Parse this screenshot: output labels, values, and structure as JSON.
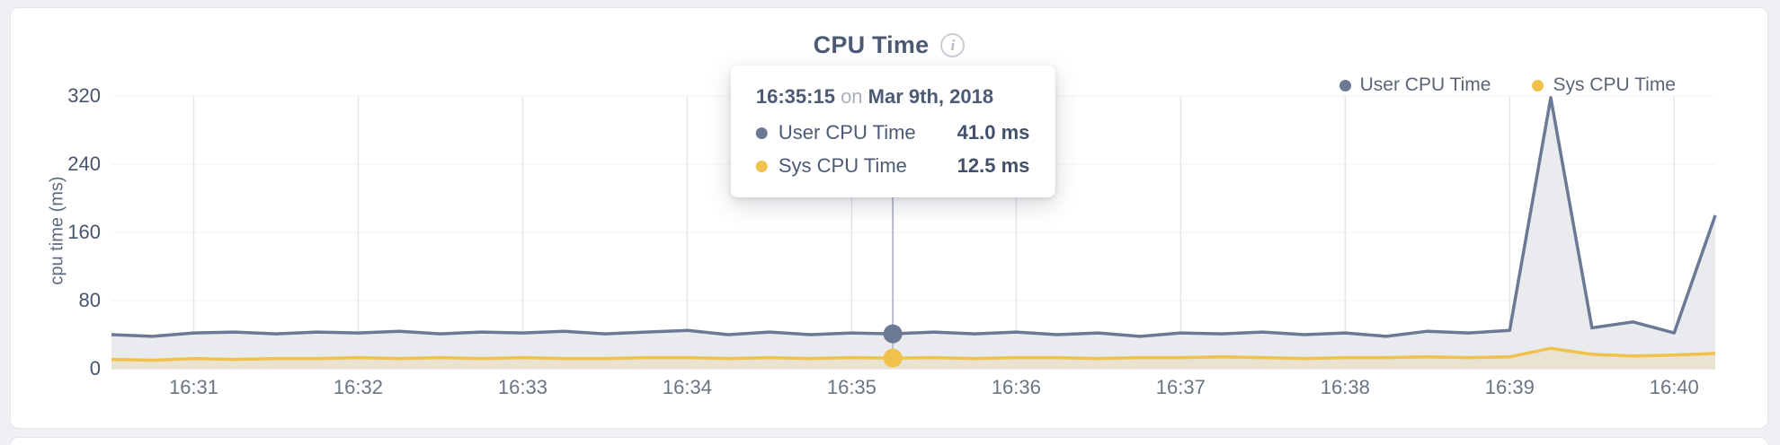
{
  "title": "CPU Time",
  "icons": {
    "info": "i"
  },
  "colors": {
    "user": "#6b7994",
    "sys": "#f0c24b",
    "user_fill": "#e9ebef",
    "sys_fill": "rgba(240,194,75,0.18)",
    "hover_line": "#b7bdc7",
    "grid": "#e4e6ea",
    "grid_minor": "#f1f2f5"
  },
  "legend": [
    {
      "label": "User CPU Time",
      "color": "#6b7994"
    },
    {
      "label": "Sys CPU Time",
      "color": "#f0c24b"
    }
  ],
  "tooltip": {
    "time": "16:35:15",
    "connector": "on",
    "date": "Mar 9th, 2018",
    "rows": [
      {
        "label": "User CPU Time",
        "value": "41.0 ms",
        "color": "#6b7994"
      },
      {
        "label": "Sys CPU Time",
        "value": "12.5 ms",
        "color": "#f0c24b"
      }
    ]
  },
  "chart_data": {
    "type": "line",
    "title": "CPU Time",
    "xlabel": "",
    "ylabel": "cpu time (ms)",
    "ylim": [
      0,
      320
    ],
    "yticks": [
      0,
      80,
      160,
      240,
      320
    ],
    "x_ticks": [
      "16:31",
      "16:32",
      "16:33",
      "16:34",
      "16:35",
      "16:36",
      "16:37",
      "16:38",
      "16:39",
      "16:40"
    ],
    "x_start": "16:30:30",
    "x_interval_sec": 15,
    "grid": "vertical",
    "legend_position": "top-right",
    "hover": {
      "time": "16:35:15",
      "user": 41.0,
      "sys": 12.5
    },
    "series": [
      {
        "name": "User CPU Time",
        "values": [
          40,
          38,
          42,
          43,
          41,
          43,
          42,
          44,
          41,
          43,
          42,
          44,
          41,
          43,
          45,
          40,
          43,
          40,
          42,
          41,
          43,
          41,
          43,
          40,
          42,
          38,
          42,
          41,
          43,
          40,
          42,
          38,
          44,
          42,
          45,
          318,
          48,
          55,
          42,
          180
        ]
      },
      {
        "name": "Sys CPU Time",
        "values": [
          11,
          10,
          12,
          11,
          12,
          12,
          13,
          12,
          13,
          12,
          13,
          12,
          12,
          13,
          13,
          12,
          13,
          12,
          13,
          12.5,
          13,
          12,
          13,
          13,
          12,
          13,
          13,
          14,
          13,
          12,
          13,
          13,
          14,
          13,
          14,
          24,
          17,
          15,
          16,
          18
        ]
      }
    ]
  }
}
